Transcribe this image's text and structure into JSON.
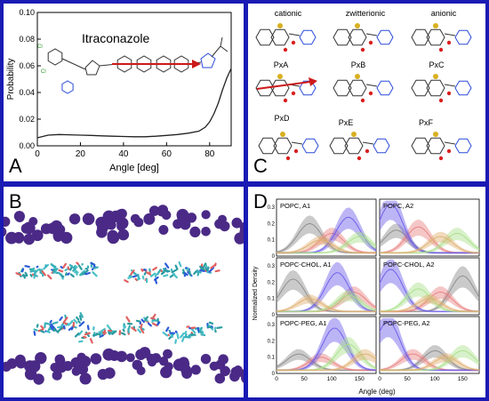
{
  "panels": {
    "A": {
      "label": "A",
      "molecule": "Itraconazole",
      "chart_data": {
        "type": "line",
        "xlabel": "Angle [deg]",
        "ylabel": "Probability",
        "xlim": [
          0,
          90
        ],
        "ylim": [
          0,
          0.1
        ],
        "xticks": [
          0,
          20,
          40,
          60,
          80
        ],
        "yticks": [
          0.0,
          0.02,
          0.04,
          0.06,
          0.08,
          0.1
        ],
        "ytick_labels": [
          "0.00",
          "0.02",
          "0.04",
          "0.06",
          "0.08",
          "0.10"
        ],
        "x": [
          0,
          5,
          10,
          15,
          20,
          25,
          30,
          35,
          40,
          45,
          50,
          55,
          60,
          65,
          70,
          75,
          78,
          80,
          82,
          84,
          86,
          88,
          90
        ],
        "y": [
          0.006,
          0.008,
          0.0085,
          0.0083,
          0.008,
          0.0078,
          0.0075,
          0.0072,
          0.007,
          0.0068,
          0.0068,
          0.0072,
          0.0078,
          0.0085,
          0.0095,
          0.011,
          0.014,
          0.018,
          0.024,
          0.032,
          0.042,
          0.051,
          0.058
        ]
      }
    },
    "B": {
      "label": "B"
    },
    "C": {
      "label": "C",
      "top_labels": [
        "cationic",
        "zwitterionic",
        "anionic"
      ],
      "mid_labels": [
        "PxA",
        "PxB",
        "PxC"
      ],
      "bot_labels": [
        "PxD",
        "PxE",
        "PxF"
      ]
    },
    "D": {
      "label": "D",
      "ylabel": "Normalized Density",
      "xlabel": "Angle (deg)",
      "xticks_left": [
        "0",
        "50",
        "100",
        "150"
      ],
      "xticks_right": [
        "0",
        "50",
        "100",
        "150"
      ],
      "yticks": [
        "0",
        "0.1",
        "0.2",
        "0.3"
      ],
      "subplots": [
        "POPC, A1",
        "POPC, A2",
        "POPC-CHOL, A1",
        "POPC-CHOL, A2",
        "POPC-PEG, A1",
        "POPC-PEG, A2"
      ]
    }
  },
  "colors": {
    "frame": "#1a1ab4",
    "lipid": "#4a2a86",
    "ring_arrow": "#cc1a1a",
    "series_blue": "#6a5ae8",
    "series_red": "#e88080",
    "series_green": "#a8e08a",
    "series_gray": "#8a8a8a",
    "series_orange": "#e0b070"
  }
}
